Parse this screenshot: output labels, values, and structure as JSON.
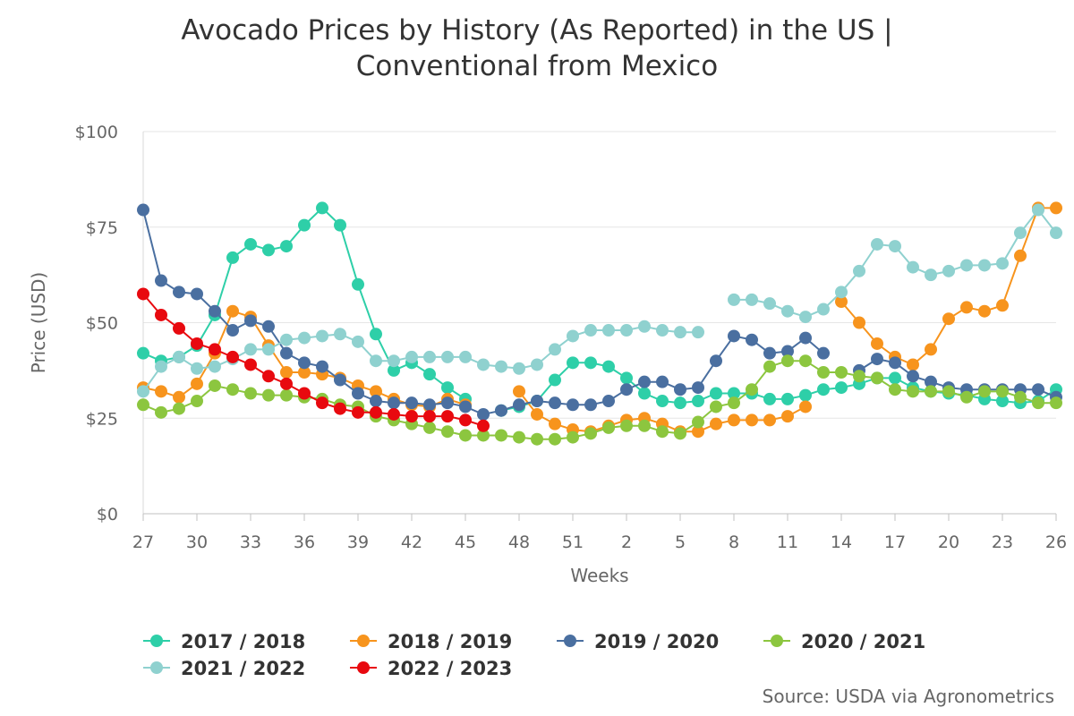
{
  "title_line1": "Avocado Prices by History (As Reported) in the US |",
  "title_line2": "Conventional from Mexico",
  "source": "Source: USDA via Agronometrics",
  "chart_data": {
    "type": "line",
    "title": "Avocado Prices by History (As Reported) in the US | Conventional from Mexico",
    "xlabel": "Weeks",
    "ylabel": "Price (USD)",
    "ylim": [
      0,
      100
    ],
    "yticks": [
      0,
      25,
      50,
      75,
      100
    ],
    "ytick_labels": [
      "$0",
      "$25",
      "$50",
      "$75",
      "$100"
    ],
    "x": [
      27,
      28,
      29,
      30,
      31,
      32,
      33,
      34,
      35,
      36,
      37,
      38,
      39,
      40,
      41,
      42,
      43,
      44,
      45,
      46,
      47,
      48,
      49,
      50,
      51,
      52,
      1,
      2,
      3,
      4,
      5,
      6,
      7,
      8,
      9,
      10,
      11,
      12,
      13,
      14,
      15,
      16,
      17,
      18,
      19,
      20,
      21,
      22,
      23,
      24,
      25,
      26
    ],
    "xtick_labels": [
      "27",
      "30",
      "33",
      "36",
      "39",
      "42",
      "45",
      "48",
      "51",
      "2",
      "5",
      "8",
      "11",
      "14",
      "17",
      "20",
      "23",
      "26"
    ],
    "xtick_indices": [
      0,
      3,
      6,
      9,
      12,
      15,
      18,
      21,
      24,
      27,
      30,
      33,
      36,
      39,
      42,
      45,
      48,
      51
    ],
    "legend_position": "bottom",
    "series": [
      {
        "name": "2017 / 2018",
        "color": "#2ecfa8",
        "values": [
          42,
          40,
          41,
          44,
          52,
          67,
          70.5,
          69,
          70,
          75.5,
          80,
          75.5,
          60,
          47,
          37.5,
          39.5,
          36.5,
          33,
          30,
          null,
          27,
          28,
          29.5,
          35,
          39.5,
          39.5,
          38.5,
          35.5,
          31.5,
          29.5,
          29,
          29.5,
          31.5,
          31.5,
          31.5,
          30,
          30,
          31,
          32.5,
          33,
          34,
          35.5,
          35.5,
          33,
          32,
          31.5,
          31,
          30,
          29.5,
          29,
          29.5,
          32.5
        ]
      },
      {
        "name": "2018 / 2019",
        "color": "#f7941d",
        "values": [
          33,
          32,
          30.5,
          34,
          42,
          53,
          51.5,
          44,
          37,
          37,
          36.5,
          35.5,
          33.5,
          32,
          30,
          28.5,
          28,
          30,
          28.5,
          null,
          null,
          32,
          26,
          23.5,
          22,
          21.5,
          23,
          24.5,
          25,
          23.5,
          21.5,
          21.5,
          23.5,
          24.5,
          24.5,
          24.5,
          25.5,
          28,
          null,
          55.5,
          50,
          44.5,
          41,
          39,
          43,
          51,
          54,
          53,
          54.5,
          67.5,
          80,
          80
        ]
      },
      {
        "name": "2019 / 2020",
        "color": "#4a6fa0",
        "values": [
          79.5,
          61,
          58,
          57.5,
          53,
          48,
          50.5,
          49,
          42,
          39.5,
          38.5,
          35,
          31.5,
          29.5,
          29,
          29,
          28.5,
          29,
          28,
          26,
          27,
          28.5,
          29.5,
          29,
          28.5,
          28.5,
          29.5,
          32.5,
          34.5,
          34.5,
          32.5,
          33,
          40,
          46.5,
          45.5,
          42,
          42.5,
          46,
          42,
          null,
          37.5,
          40.5,
          39.5,
          36,
          34.5,
          33,
          32.5,
          32.5,
          32.5,
          32.5,
          32.5,
          30.5
        ]
      },
      {
        "name": "2020 / 2021",
        "color": "#8cc63f",
        "values": [
          28.5,
          26.5,
          27.5,
          29.5,
          33.5,
          32.5,
          31.5,
          31,
          31,
          30.5,
          30,
          28.5,
          28,
          25.5,
          24.5,
          23.5,
          22.5,
          21.5,
          20.5,
          20.5,
          20.5,
          20,
          19.5,
          19.5,
          20,
          21,
          22.5,
          23,
          23,
          21.5,
          21,
          24,
          28,
          29,
          32.5,
          38.5,
          40,
          40,
          37,
          37,
          36,
          35.5,
          32.5,
          32,
          32,
          32,
          30.5,
          32,
          32,
          30.5,
          29,
          29
        ]
      },
      {
        "name": "2021 / 2022",
        "color": "#8fd1cf",
        "values": [
          32,
          38.5,
          41,
          38,
          38.5,
          40.5,
          43,
          43,
          45.5,
          46,
          46.5,
          47,
          45,
          40,
          40,
          41,
          41,
          41,
          41,
          39,
          38.5,
          38,
          39,
          43,
          46.5,
          48,
          48,
          48,
          49,
          48,
          47.5,
          47.5,
          null,
          56,
          56,
          55,
          53,
          51.5,
          53.5,
          58,
          63.5,
          70.5,
          70,
          64.5,
          62.5,
          63.5,
          65,
          65,
          65.5,
          73.5,
          79.5,
          73.5
        ]
      },
      {
        "name": "2022 / 2023",
        "color": "#e8090f",
        "values": [
          57.5,
          52,
          48.5,
          44.5,
          43,
          41,
          39,
          36,
          34,
          31.5,
          29,
          27.5,
          26.5,
          26.5,
          26,
          25.5,
          25.5,
          25.5,
          24.5,
          23,
          null,
          null,
          null,
          null,
          null,
          null,
          null,
          null,
          null,
          null,
          null,
          null,
          null,
          null,
          null,
          null,
          null,
          null,
          null,
          null,
          null,
          null,
          null,
          null,
          null,
          null,
          null,
          null,
          null,
          null,
          null,
          null
        ]
      }
    ]
  }
}
